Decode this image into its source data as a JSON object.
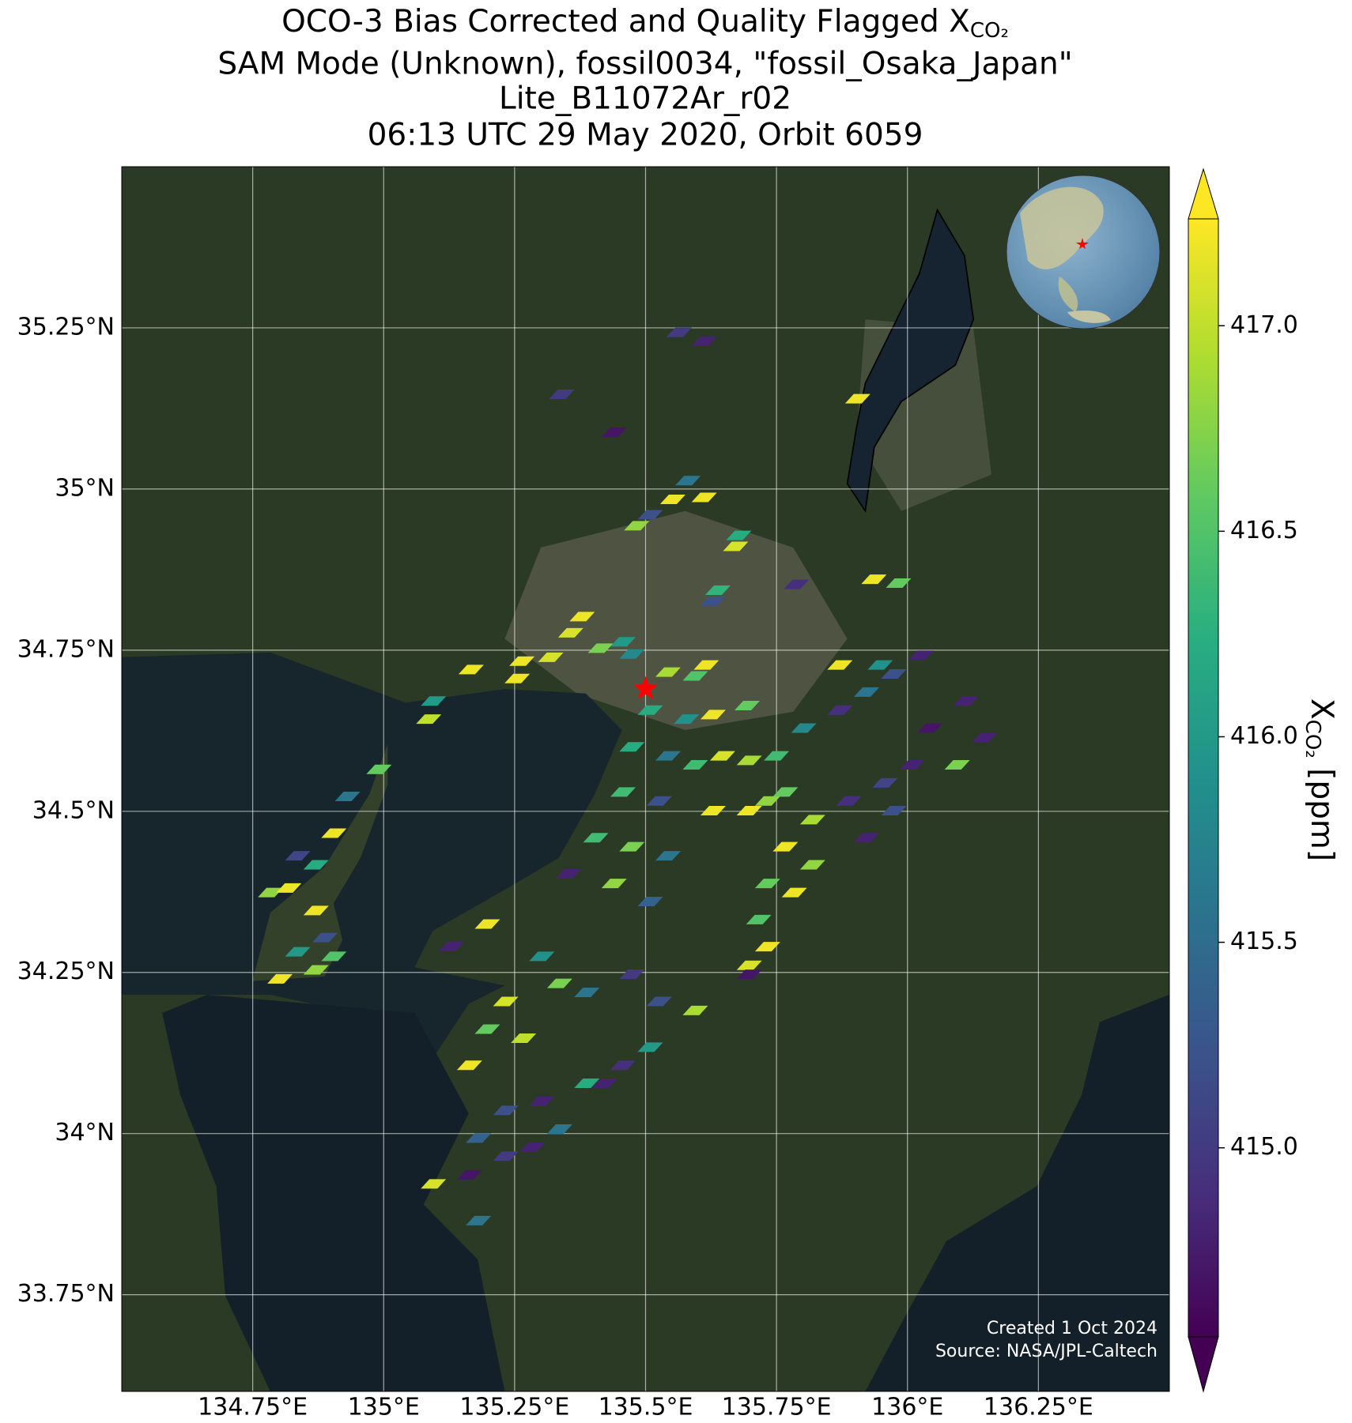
{
  "chart_data": {
    "type": "map",
    "title": {
      "main": "OCO-3 Bias Corrected and Quality Flagged X",
      "subscript": "CO₂"
    },
    "subtitle_lines": [
      "SAM Mode (Unknown), fossil0034, \"fossil_Osaka_Japan\"",
      "Lite_B11072Ar_r02",
      "06:13 UTC 29 May 2020, Orbit 6059"
    ],
    "xlim": [
      134.5,
      136.5
    ],
    "ylim": [
      33.6,
      35.5
    ],
    "xticks": [
      {
        "value": 134.75,
        "label": "134.75°E"
      },
      {
        "value": 135,
        "label": "135°E"
      },
      {
        "value": 135.25,
        "label": "135.25°E"
      },
      {
        "value": 135.5,
        "label": "135.5°E"
      },
      {
        "value": 135.75,
        "label": "135.75°E"
      },
      {
        "value": 136,
        "label": "136°E"
      },
      {
        "value": 136.25,
        "label": "136.25°E"
      }
    ],
    "yticks": [
      {
        "value": 33.75,
        "label": "33.75°N"
      },
      {
        "value": 34,
        "label": "34°N"
      },
      {
        "value": 34.25,
        "label": "34.25°N"
      },
      {
        "value": 34.5,
        "label": "34.5°N"
      },
      {
        "value": 34.75,
        "label": "34.75°N"
      },
      {
        "value": 35,
        "label": "35°N"
      },
      {
        "value": 35.25,
        "label": "35.25°N"
      }
    ],
    "grid": true,
    "colormap": [
      "#440154",
      "#472d7b",
      "#3b528b",
      "#2c728e",
      "#21918c",
      "#28ae80",
      "#5ec962",
      "#addc30",
      "#fde725"
    ],
    "clim": [
      414.54,
      417.26
    ],
    "colorbar_ticks": [
      {
        "value": 415.0,
        "label": "415.0"
      },
      {
        "value": 415.5,
        "label": "415.5"
      },
      {
        "value": 416.0,
        "label": "416.0"
      },
      {
        "value": 416.5,
        "label": "416.5"
      },
      {
        "value": 417.0,
        "label": "417.0"
      }
    ],
    "colorbar_label": {
      "main": "X",
      "subscript": "CO₂",
      "unit": " [ppm]"
    },
    "target": {
      "lon": 135.5,
      "lat": 34.69,
      "color": "#ff0000"
    },
    "soundings": {
      "lon": [
        135.564,
        135.612,
        135.34,
        135.44,
        135.905,
        135.581,
        135.552,
        135.612,
        135.509,
        135.483,
        135.678,
        135.672,
        135.638,
        135.629,
        135.788,
        135.936,
        135.983,
        135.379,
        135.357,
        135.414,
        135.457,
        135.474,
        135.319,
        135.264,
        135.167,
        135.255,
        135.095,
        135.086,
        135.543,
        135.595,
        135.616,
        135.509,
        135.578,
        135.629,
        135.694,
        135.474,
        135.543,
        135.595,
        135.647,
        135.698,
        135.75,
        135.802,
        135.871,
        135.922,
        135.974,
        136.026,
        135.871,
        135.948,
        136.043,
        136.112,
        136.147,
        136.095,
        135.457,
        135.526,
        135.629,
        135.698,
        135.733,
        135.767,
        135.819,
        135.888,
        135.957,
        136.009,
        135.922,
        135.974,
        135.405,
        135.474,
        135.543,
        135.353,
        135.44,
        135.509,
        135.767,
        135.819,
        135.733,
        135.784,
        135.716,
        135.733,
        135.698,
        135.198,
        135.129,
        134.836,
        134.871,
        134.905,
        134.784,
        134.819,
        134.871,
        134.888,
        134.836,
        134.905,
        134.802,
        134.871,
        134.991,
        134.931,
        135.302,
        135.336,
        135.233,
        135.198,
        135.164,
        135.267,
        135.388,
        135.474,
        135.526,
        135.509,
        135.457,
        135.388,
        135.302,
        135.233,
        135.181,
        135.233,
        135.164,
        135.095,
        135.336,
        135.284,
        135.422,
        135.595,
        135.698,
        135.181
      ],
      "lat": [
        35.243,
        35.229,
        35.147,
        35.088,
        35.14,
        35.013,
        34.984,
        34.987,
        34.96,
        34.943,
        34.928,
        34.911,
        34.843,
        34.826,
        34.852,
        34.86,
        34.854,
        34.802,
        34.777,
        34.753,
        34.763,
        34.744,
        34.739,
        34.733,
        34.72,
        34.706,
        34.671,
        34.643,
        34.716,
        34.71,
        34.727,
        34.657,
        34.643,
        34.65,
        34.664,
        34.6,
        34.586,
        34.572,
        34.586,
        34.579,
        34.586,
        34.629,
        34.657,
        34.685,
        34.713,
        34.742,
        34.727,
        34.727,
        34.629,
        34.671,
        34.614,
        34.572,
        34.53,
        34.516,
        34.501,
        34.501,
        34.516,
        34.53,
        34.487,
        34.516,
        34.544,
        34.572,
        34.459,
        34.501,
        34.459,
        34.445,
        34.431,
        34.403,
        34.388,
        34.36,
        34.445,
        34.417,
        34.388,
        34.374,
        34.332,
        34.29,
        34.261,
        34.325,
        34.29,
        34.431,
        34.417,
        34.466,
        34.374,
        34.381,
        34.346,
        34.304,
        34.282,
        34.275,
        34.24,
        34.254,
        34.565,
        34.523,
        34.275,
        34.233,
        34.205,
        34.162,
        34.106,
        34.148,
        34.219,
        34.247,
        34.205,
        34.134,
        34.106,
        34.078,
        34.05,
        34.036,
        33.993,
        33.965,
        33.936,
        33.922,
        34.007,
        33.979,
        34.078,
        34.191,
        34.247,
        33.865
      ],
      "xco2": [
        415.0,
        414.8,
        415.0,
        414.7,
        417.2,
        415.6,
        417.2,
        417.2,
        415.2,
        416.8,
        416.2,
        417.1,
        416.3,
        415.2,
        414.9,
        417.2,
        416.6,
        417.2,
        417.1,
        416.7,
        416.0,
        415.8,
        417.1,
        417.2,
        417.2,
        417.2,
        416.0,
        417.0,
        416.9,
        416.5,
        417.2,
        416.2,
        415.9,
        417.2,
        416.6,
        416.2,
        415.6,
        416.4,
        417.1,
        416.9,
        416.4,
        415.8,
        414.9,
        415.6,
        415.2,
        414.8,
        417.2,
        415.9,
        414.7,
        414.8,
        414.8,
        416.7,
        416.4,
        415.2,
        417.2,
        417.2,
        416.8,
        416.6,
        416.9,
        414.9,
        415.1,
        414.8,
        414.8,
        415.2,
        416.4,
        416.7,
        415.6,
        414.8,
        416.8,
        415.4,
        417.2,
        416.8,
        416.6,
        417.2,
        416.5,
        417.2,
        417.1,
        417.2,
        414.8,
        415.1,
        416.2,
        417.2,
        416.8,
        417.2,
        417.2,
        415.2,
        416.0,
        416.5,
        417.2,
        416.8,
        416.6,
        415.6,
        415.9,
        416.7,
        417.1,
        416.6,
        417.2,
        417.0,
        415.6,
        415.0,
        415.2,
        416.0,
        414.9,
        416.2,
        414.8,
        415.2,
        415.4,
        415.0,
        414.7,
        417.1,
        415.6,
        414.8,
        414.8,
        416.9,
        414.7,
        415.6
      ]
    },
    "credits": [
      "Created 1 Oct 2024",
      "Source: NASA/JPL-Caltech"
    ]
  }
}
